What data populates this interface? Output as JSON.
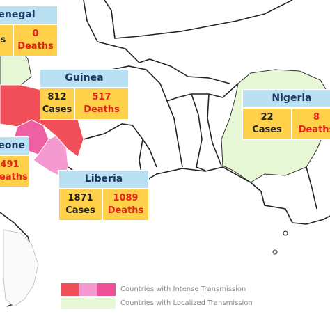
{
  "countries": [
    {
      "name": "Senegal",
      "deaths": "0",
      "cases_label": "Cases",
      "deaths_label": "Deaths"
    },
    {
      "name": "Guinea",
      "cases": "812",
      "deaths": "517",
      "cases_label": "Cases",
      "deaths_label": "Deaths"
    },
    {
      "name": "Nigeria",
      "cases": "22",
      "deaths": "8",
      "cases_label": "Cases",
      "deaths_label": "Deaths"
    },
    {
      "name": "Sierra Leone",
      "deaths": "491",
      "deaths_label": "Deaths"
    },
    {
      "name": "Liberia",
      "cases": "1871",
      "deaths": "1089",
      "cases_label": "Cases",
      "deaths_label": "Deaths"
    }
  ],
  "legend": {
    "intense": "Countries with Intense Transmission",
    "localized": "Countries with Localized Transmission"
  }
}
